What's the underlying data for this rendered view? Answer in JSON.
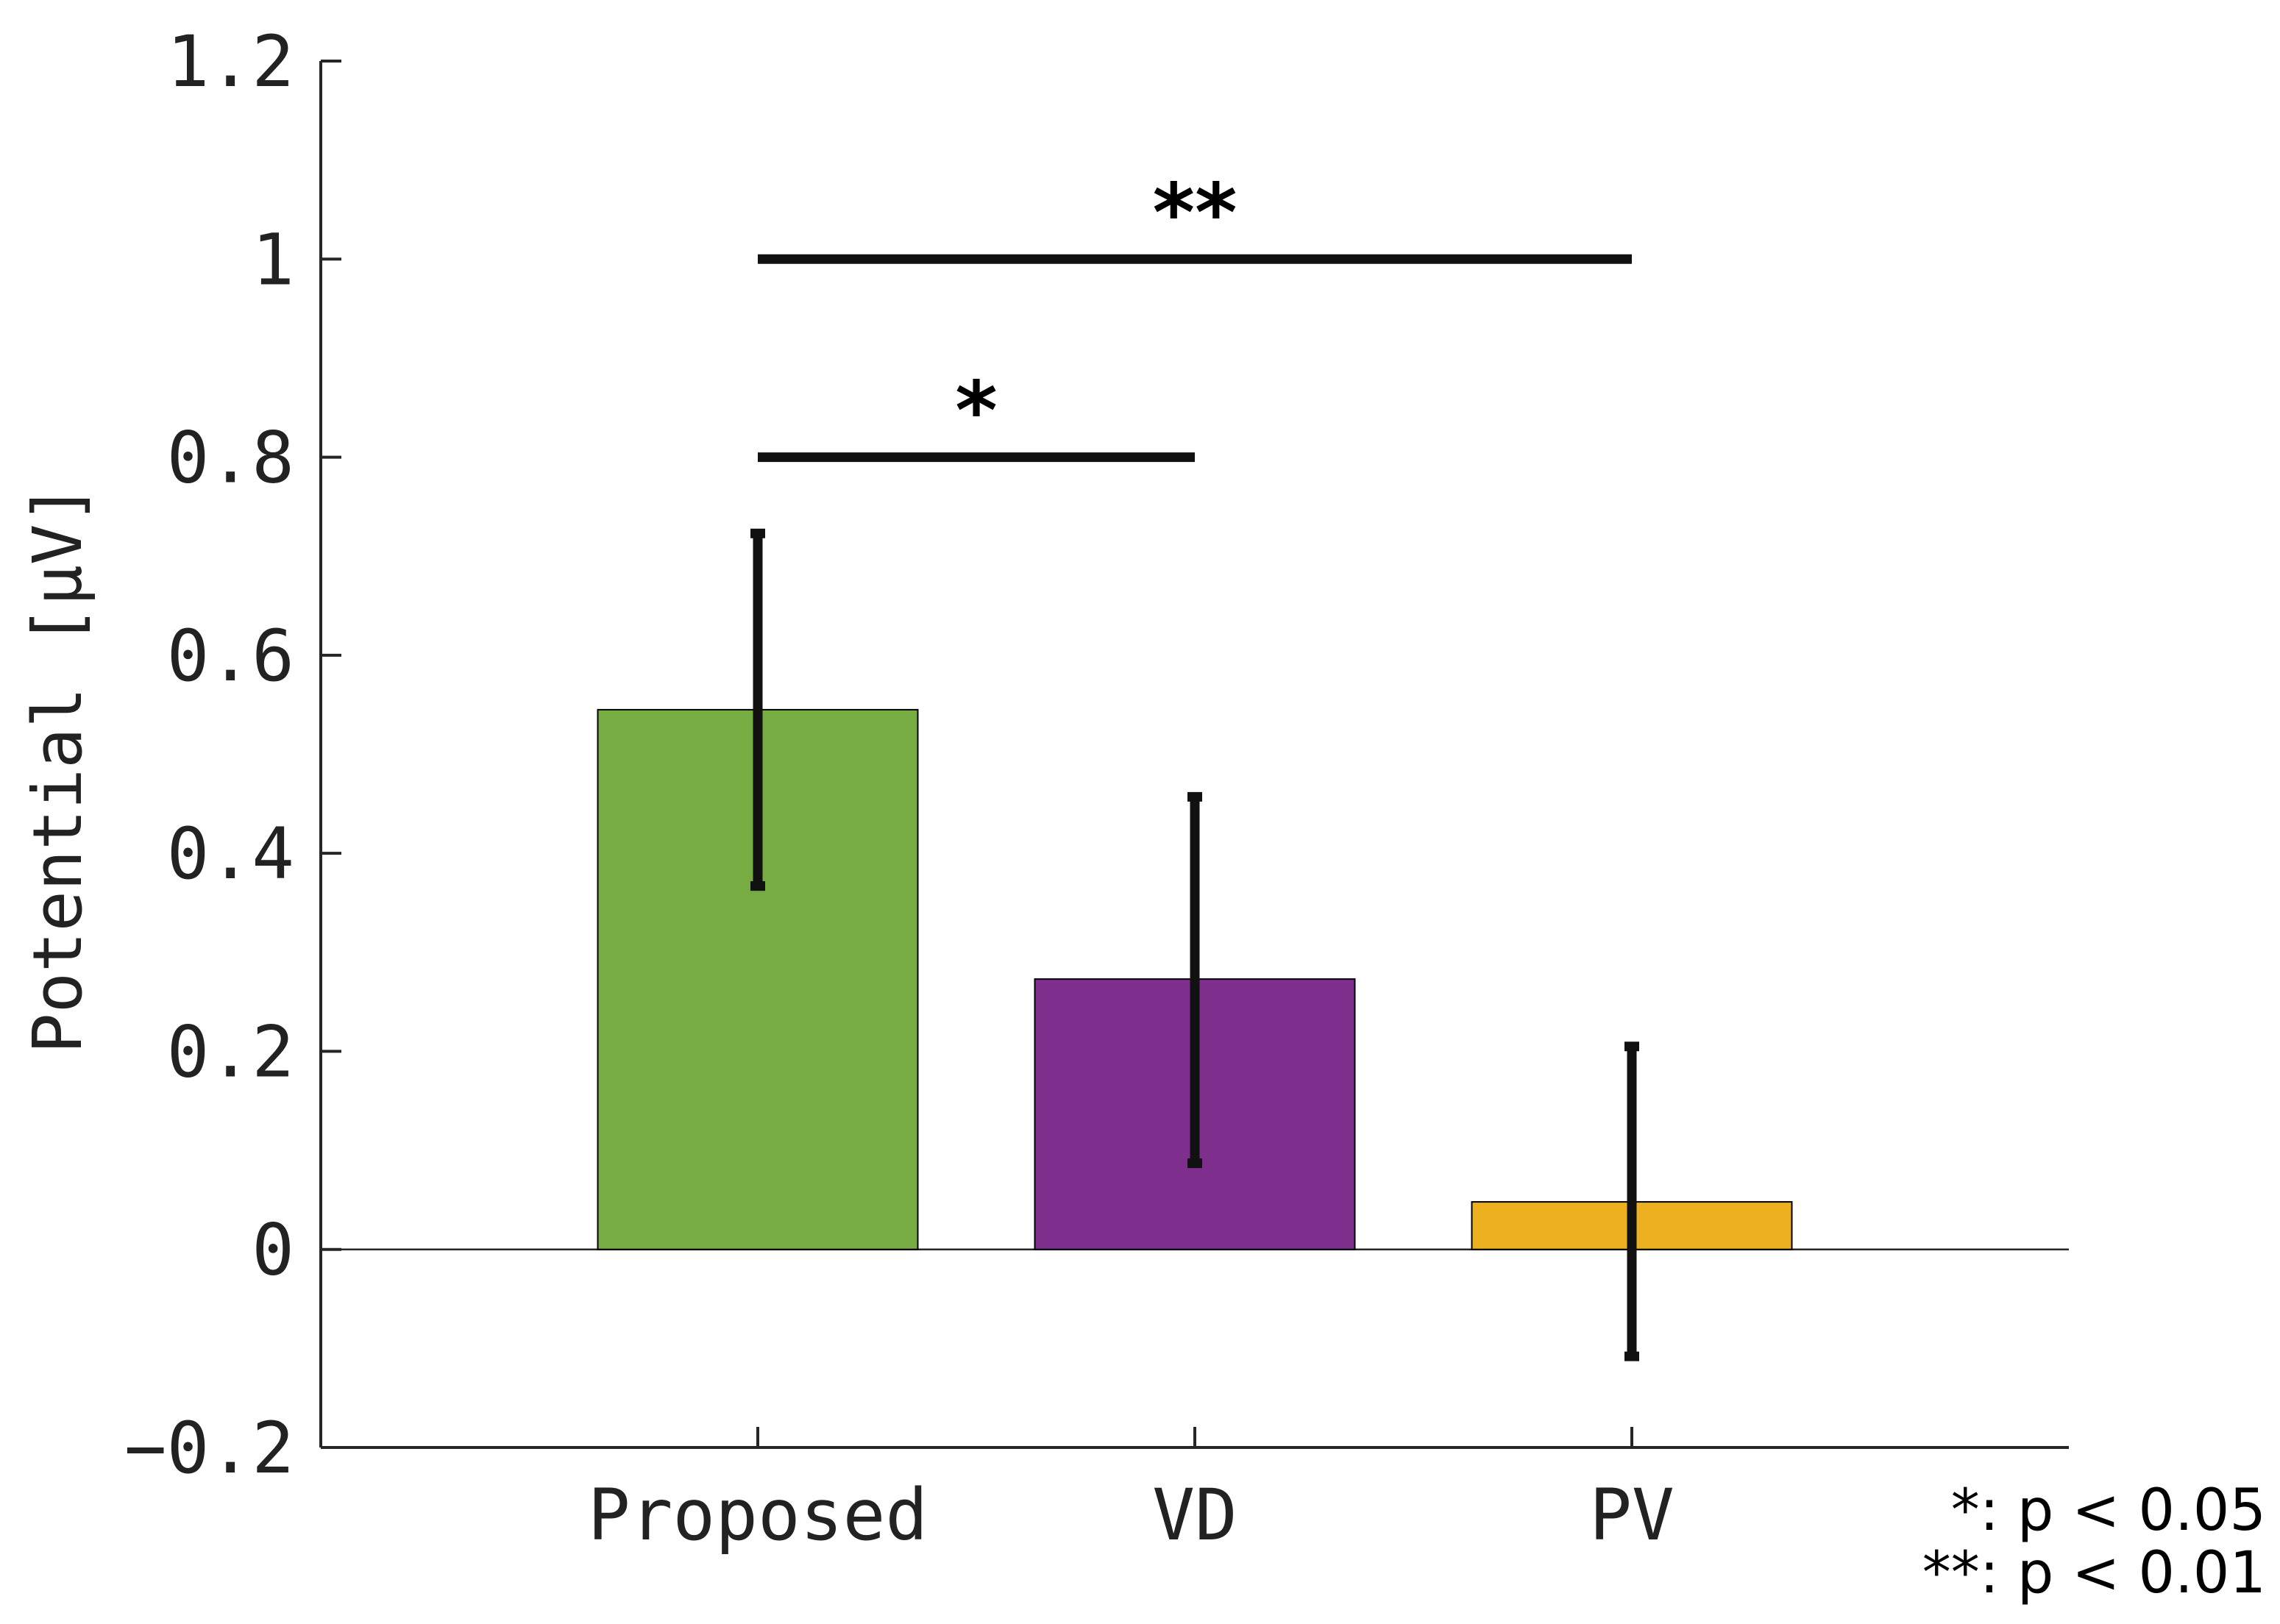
{
  "chart_data": {
    "type": "bar",
    "title": "",
    "xlabel": "",
    "ylabel": "Potential [μV]",
    "ylim": [
      -0.2,
      1.2
    ],
    "yticks": [
      -0.2,
      0,
      0.2,
      0.4,
      0.6,
      0.8,
      1,
      1.2
    ],
    "ytick_labels": [
      "−0.2",
      "0",
      "0.2",
      "0.4",
      "0.6",
      "0.8",
      "1",
      "1.2"
    ],
    "categories": [
      "Proposed",
      "VD",
      "PV"
    ],
    "values": [
      0.545,
      0.273,
      0.048
    ],
    "error_low": [
      0.367,
      0.087,
      -0.108
    ],
    "error_high": [
      0.723,
      0.457,
      0.205
    ],
    "colors": [
      "#77ac42",
      "#7e2f8e",
      "#edb120"
    ],
    "significance": [
      {
        "from": "Proposed",
        "to": "VD",
        "y": 0.8,
        "label": "*"
      },
      {
        "from": "Proposed",
        "to": "PV",
        "y": 1.0,
        "label": "**"
      }
    ],
    "legend_notes": [
      "*: p < 0.05",
      "**: p < 0.01"
    ]
  }
}
